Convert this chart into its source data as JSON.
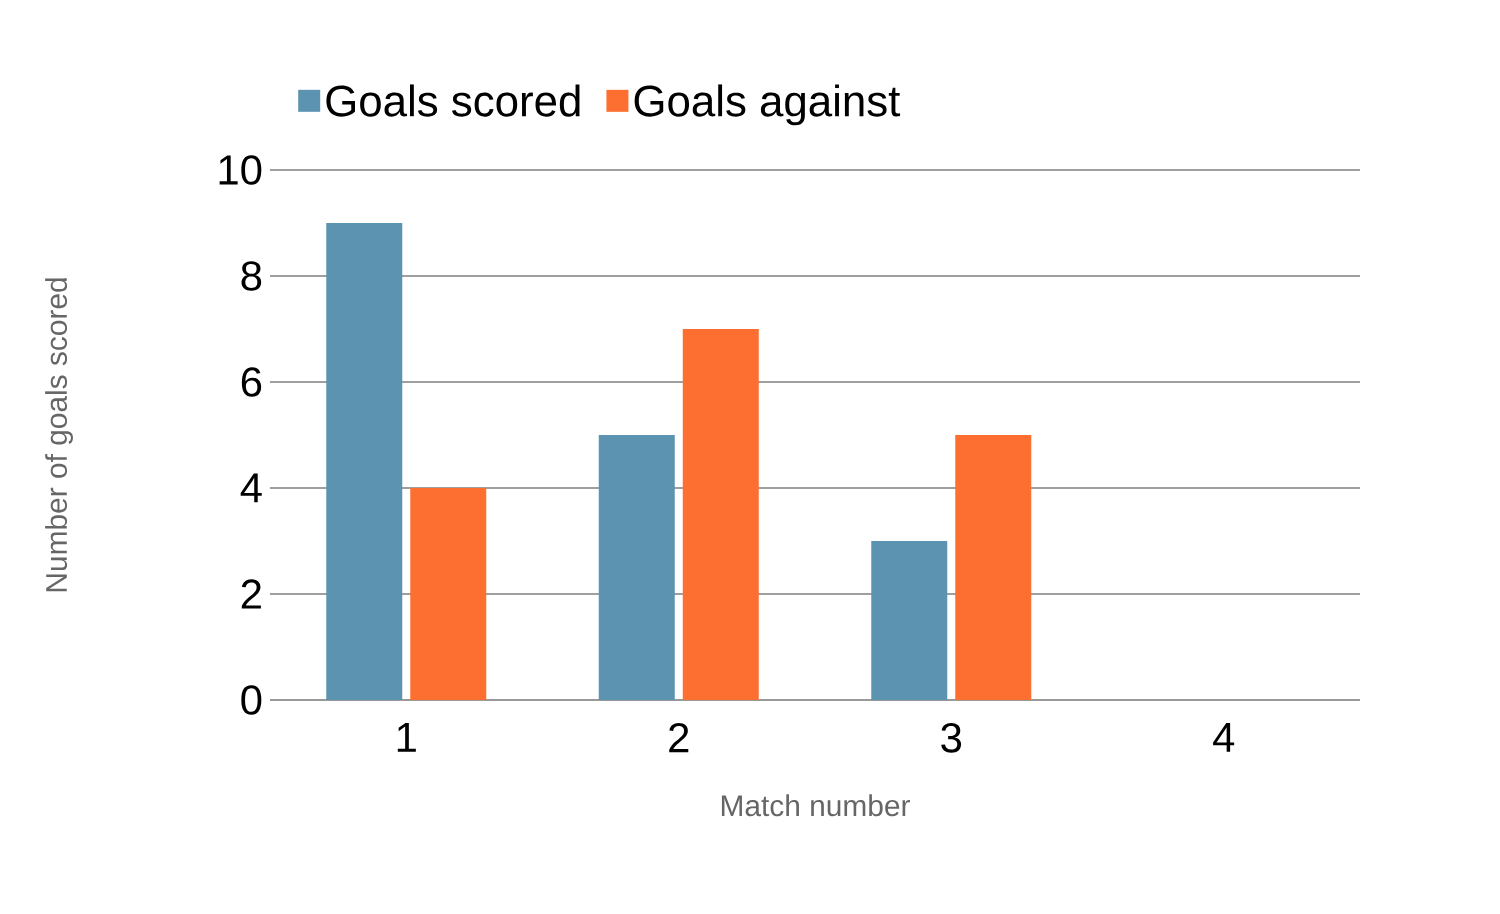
{
  "chart_data": {
    "type": "bar",
    "xlabel": "Match number",
    "ylabel": "Number of goals scored",
    "categories": [
      "1",
      "2",
      "3",
      "4"
    ],
    "series": [
      {
        "name": "Goals scored",
        "color": "#5b93b0",
        "values": [
          9,
          5,
          3,
          null
        ]
      },
      {
        "name": "Goals against",
        "color": "#fd6f30",
        "values": [
          4,
          7,
          5,
          null
        ]
      }
    ],
    "ylim": [
      0,
      10
    ],
    "yticks": [
      0,
      2,
      4,
      6,
      8,
      10
    ],
    "grid": "y",
    "legend": "top"
  }
}
